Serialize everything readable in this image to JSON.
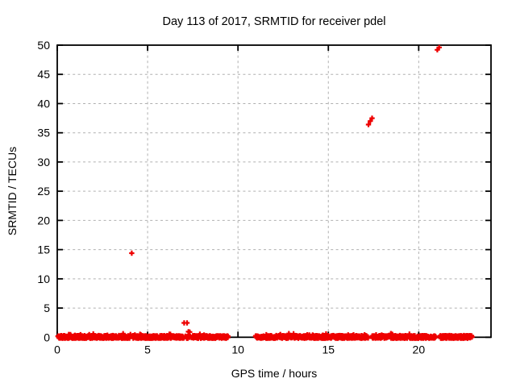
{
  "chart_data": {
    "type": "scatter",
    "title": "Day 113 of 2017, SRMTID for receiver pdel",
    "xlabel": "GPS time / hours",
    "ylabel": "SRMTID / TECUs",
    "xlim": [
      0,
      24
    ],
    "ylim": [
      0,
      50
    ],
    "xticks": [
      0,
      5,
      10,
      15,
      20
    ],
    "yticks": [
      0,
      5,
      10,
      15,
      20,
      25,
      30,
      35,
      40,
      45,
      50
    ],
    "grid": true,
    "legend": "none",
    "marker": "plus",
    "marker_color": "#ee0000",
    "grid_color": "#b0b0b0",
    "border_color": "#000000",
    "series": [
      {
        "name": "SRMTID",
        "outlier_points": [
          [
            4.12,
            14.4
          ],
          [
            7.02,
            2.45
          ],
          [
            7.18,
            2.45
          ],
          [
            7.26,
            0.95
          ],
          [
            7.33,
            0.9
          ],
          [
            17.22,
            36.4
          ],
          [
            17.32,
            37.0
          ],
          [
            17.42,
            37.5
          ],
          [
            21.03,
            49.2
          ],
          [
            21.13,
            49.6
          ]
        ],
        "zero_band_value": 0,
        "zero_band_jitter_range": [
          -0.2,
          0.3
        ],
        "zero_band_segments": [
          [
            0.04,
            4.05
          ],
          [
            4.18,
            7.0
          ],
          [
            7.08,
            7.35
          ],
          [
            7.45,
            9.45
          ],
          [
            10.97,
            17.2
          ],
          [
            17.42,
            20.93
          ],
          [
            21.17,
            22.95
          ]
        ]
      }
    ]
  }
}
